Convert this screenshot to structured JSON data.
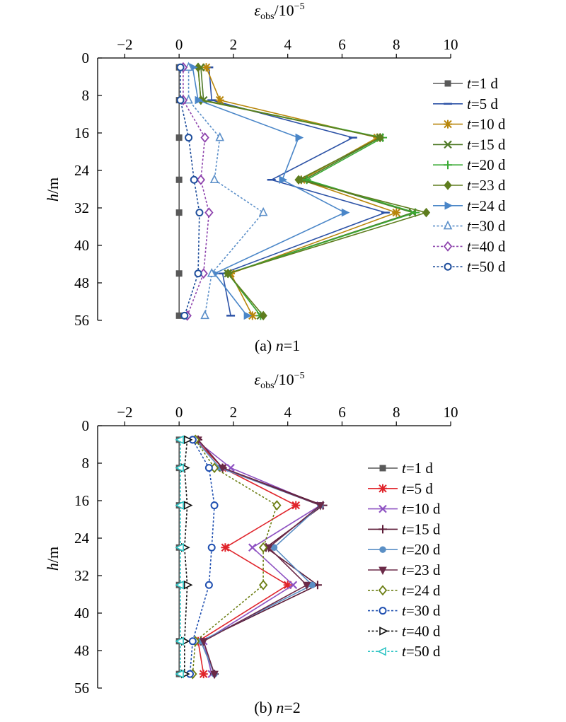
{
  "chart_data": [
    {
      "type": "line",
      "caption_prefix": "(a) ",
      "caption_var": "n",
      "caption_value": "=1",
      "xlabel": "ε_obs/10^-5",
      "xlabel_symbol": "ε",
      "xlabel_sub": "obs",
      "xlabel_rest": "/10",
      "xlabel_exp": "−5",
      "ylabel_var": "h",
      "ylabel_unit": "/m",
      "xlim": [
        -3,
        10
      ],
      "ylim": [
        0,
        56
      ],
      "y_inverted": true,
      "x_axis_position": "top",
      "xticks": [
        -2,
        0,
        2,
        4,
        6,
        8,
        10
      ],
      "xtick_labels": [
        "−2",
        "0",
        "2",
        "4",
        "6",
        "8",
        "10"
      ],
      "yticks": [
        0,
        8,
        16,
        24,
        32,
        40,
        48,
        56
      ],
      "ytick_labels": [
        "0",
        "8",
        "16",
        "24",
        "32",
        "40",
        "48",
        "56"
      ],
      "legend_placement": "right",
      "depths": [
        2,
        9,
        17,
        26,
        33,
        46,
        55
      ],
      "series": [
        {
          "name": "t=1 d",
          "var": "t",
          "label": "=1 d",
          "color": "#595959",
          "marker": "square",
          "dashed": false,
          "values": [
            0,
            0,
            0,
            0,
            0,
            0,
            0
          ]
        },
        {
          "name": "t=5 d",
          "var": "t",
          "label": "=5 d",
          "color": "#2c52a6",
          "marker": "dash",
          "dashed": false,
          "values": [
            1.1,
            1.2,
            6.4,
            3.4,
            7.6,
            1.6,
            1.9
          ]
        },
        {
          "name": "t=10 d",
          "var": "t",
          "label": "=10 d",
          "color": "#b8860b",
          "marker": "star",
          "dashed": false,
          "values": [
            1.0,
            1.5,
            7.3,
            4.5,
            8.0,
            1.9,
            2.7
          ]
        },
        {
          "name": "t=15 d",
          "var": "t",
          "label": "=15 d",
          "color": "#4f7a28",
          "marker": "x",
          "dashed": false,
          "values": [
            0.8,
            0.9,
            7.4,
            4.6,
            8.6,
            1.8,
            3.0
          ]
        },
        {
          "name": "t=20 d",
          "var": "t",
          "label": "=20 d",
          "color": "#3aaa35",
          "marker": "plus",
          "dashed": false,
          "values": [
            0.7,
            0.8,
            7.5,
            4.7,
            8.7,
            1.8,
            3.0
          ]
        },
        {
          "name": "t=23 d",
          "var": "t",
          "label": "=23 d",
          "color": "#5e7d1e",
          "marker": "diamond",
          "dashed": false,
          "values": [
            0.7,
            0.8,
            7.4,
            4.4,
            9.1,
            1.8,
            3.1
          ]
        },
        {
          "name": "t=24 d",
          "var": "t",
          "label": "=24 d",
          "color": "#4a86c8",
          "marker": "triangle-right",
          "dashed": false,
          "values": [
            0.5,
            0.7,
            4.4,
            3.8,
            6.1,
            1.3,
            2.5
          ]
        },
        {
          "name": "t=30 d",
          "var": "t",
          "label": "=30 d",
          "color": "#5b8fc9",
          "marker": "triangle-up-open",
          "dashed": true,
          "values": [
            0.35,
            0.35,
            1.5,
            1.3,
            3.1,
            1.2,
            0.95
          ]
        },
        {
          "name": "t=40 d",
          "var": "t",
          "label": "=40 d",
          "color": "#8e44ad",
          "marker": "diamond-open",
          "dashed": true,
          "values": [
            0.15,
            0.15,
            0.95,
            0.8,
            1.1,
            0.9,
            0.3
          ]
        },
        {
          "name": "t=50 d",
          "var": "t",
          "label": "=50 d",
          "color": "#1f4e9c",
          "marker": "circle-open",
          "dashed": true,
          "values": [
            0.05,
            0.05,
            0.35,
            0.55,
            0.75,
            0.7,
            0.2
          ]
        }
      ]
    },
    {
      "type": "line",
      "caption_prefix": "(b) ",
      "caption_var": "n",
      "caption_value": "=2",
      "xlabel": "ε_obs/10^-5",
      "xlabel_symbol": "ε",
      "xlabel_sub": "obs",
      "xlabel_rest": "/10",
      "xlabel_exp": "−5",
      "ylabel_var": "h",
      "ylabel_unit": "/m",
      "xlim": [
        -3,
        10
      ],
      "ylim": [
        0,
        56
      ],
      "y_inverted": true,
      "x_axis_position": "top",
      "xticks": [
        -2,
        0,
        2,
        4,
        6,
        8,
        10
      ],
      "xtick_labels": [
        "−2",
        "0",
        "2",
        "4",
        "6",
        "8",
        "10"
      ],
      "yticks": [
        0,
        8,
        16,
        24,
        32,
        40,
        48,
        56
      ],
      "ytick_labels": [
        "0",
        "8",
        "16",
        "24",
        "32",
        "40",
        "48",
        "56"
      ],
      "legend_placement": "right",
      "depths": [
        3,
        9,
        17,
        26,
        34,
        46,
        53
      ],
      "series": [
        {
          "name": "t=1 d",
          "var": "t",
          "label": "=1 d",
          "color": "#595959",
          "marker": "square",
          "dashed": false,
          "values": [
            0,
            0,
            0,
            0,
            0,
            0,
            0
          ]
        },
        {
          "name": "t=5 d",
          "var": "t",
          "label": "=5 d",
          "color": "#e0242b",
          "marker": "star",
          "dashed": false,
          "values": [
            0.6,
            1.6,
            4.3,
            1.7,
            4.0,
            0.7,
            0.9
          ]
        },
        {
          "name": "t=10 d",
          "var": "t",
          "label": "=10 d",
          "color": "#8e52c2",
          "marker": "x",
          "dashed": false,
          "values": [
            0.6,
            1.9,
            5.2,
            2.7,
            4.2,
            0.9,
            1.2
          ]
        },
        {
          "name": "t=15 d",
          "var": "t",
          "label": "=15 d",
          "color": "#5b1a36",
          "marker": "plus",
          "dashed": false,
          "values": [
            0.7,
            1.6,
            5.3,
            3.2,
            5.1,
            0.8,
            1.3
          ]
        },
        {
          "name": "t=20 d",
          "var": "t",
          "label": "=20 d",
          "color": "#5a8fc5",
          "marker": "circle-filled",
          "dashed": false,
          "values": [
            0.6,
            1.5,
            5.2,
            3.5,
            4.9,
            0.8,
            1.3
          ]
        },
        {
          "name": "t=23 d",
          "var": "t",
          "label": "=23 d",
          "color": "#6b2a48",
          "marker": "triangle-down",
          "dashed": false,
          "values": [
            0.7,
            1.6,
            5.2,
            3.3,
            4.7,
            0.9,
            1.3
          ]
        },
        {
          "name": "t=24 d",
          "var": "t",
          "label": "=24 d",
          "color": "#6b7d12",
          "marker": "diamond-open",
          "dashed": true,
          "values": [
            0.6,
            1.3,
            3.6,
            3.1,
            3.1,
            0.6,
            0.5
          ]
        },
        {
          "name": "t=30 d",
          "var": "t",
          "label": "=30 d",
          "color": "#1f4fb0",
          "marker": "circle-open",
          "dashed": true,
          "values": [
            0.5,
            1.1,
            1.3,
            1.2,
            1.1,
            0.5,
            0.4
          ]
        },
        {
          "name": "t=40 d",
          "var": "t",
          "label": "=40 d",
          "color": "#111111",
          "marker": "triangle-right-open",
          "dashed": true,
          "values": [
            0.3,
            0.2,
            0.3,
            0.2,
            0.3,
            0.2,
            0.2
          ]
        },
        {
          "name": "t=50 d",
          "var": "t",
          "label": "=50 d",
          "color": "#2ec4c4",
          "marker": "triangle-left-open",
          "dashed": true,
          "values": [
            0.05,
            0.05,
            0.05,
            0.05,
            0.05,
            0.05,
            0.05
          ]
        }
      ]
    }
  ]
}
